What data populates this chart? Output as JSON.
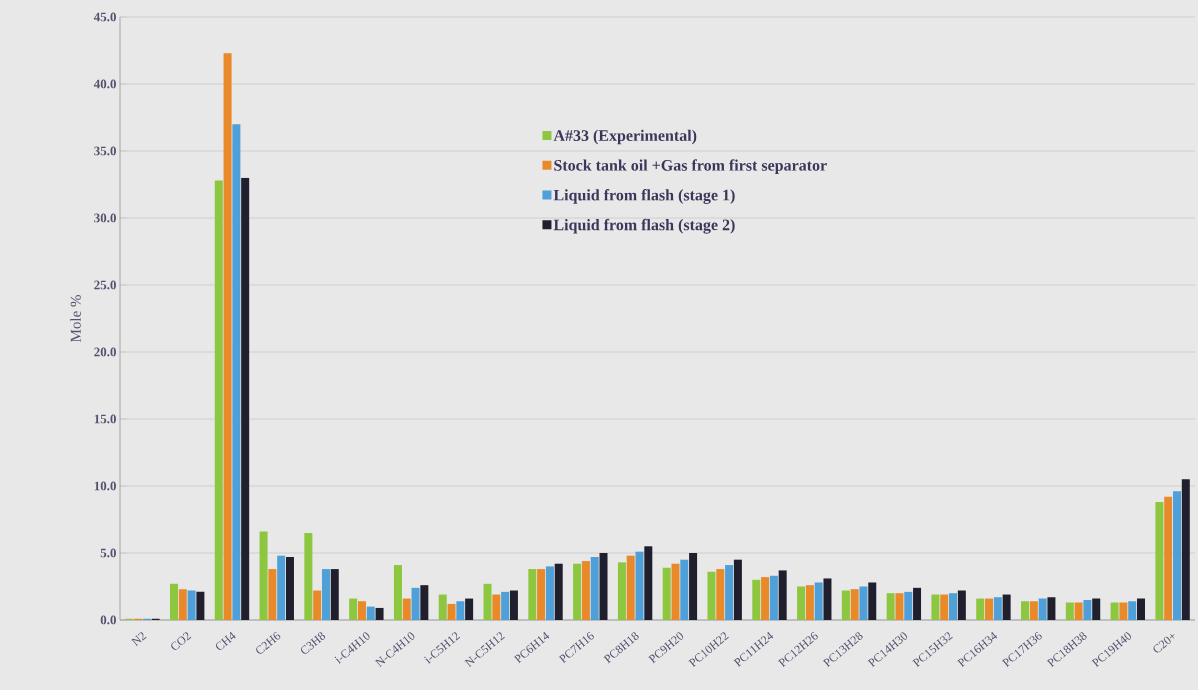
{
  "chart_data": {
    "type": "bar",
    "ylabel": "Mole %",
    "categories": [
      "N2",
      "CO2",
      "CH4",
      "C2H6",
      "C3H8",
      "i-C4H10",
      "N-C4H10",
      "i-C5H12",
      "N-C5H12",
      "PC6H14",
      "PC7H16",
      "PC8H18",
      "PC9H20",
      "PC10H22",
      "PC11H24",
      "PC12H26",
      "PC13H28",
      "PC14H30",
      "PC15H32",
      "PC16H34",
      "PC17H36",
      "PC18H38",
      "PC19H40",
      "C20+"
    ],
    "series": [
      {
        "name": "A#33 (Experimental)",
        "color": "#8dc63f",
        "values": [
          0.1,
          2.7,
          32.8,
          6.6,
          6.5,
          1.6,
          4.1,
          1.9,
          2.7,
          3.8,
          4.2,
          4.3,
          3.9,
          3.6,
          3.0,
          2.5,
          2.2,
          2.0,
          1.9,
          1.6,
          1.4,
          1.3,
          1.3,
          8.8
        ]
      },
      {
        "name": "Stock tank oil +Gas from first separator",
        "color": "#e8892a",
        "values": [
          0.1,
          2.3,
          42.3,
          3.8,
          2.2,
          1.4,
          1.6,
          1.2,
          1.9,
          3.8,
          4.4,
          4.8,
          4.2,
          3.8,
          3.2,
          2.6,
          2.3,
          2.0,
          1.9,
          1.6,
          1.4,
          1.3,
          1.3,
          9.2
        ]
      },
      {
        "name": "Liquid from flash (stage 1)",
        "color": "#4f9fd9",
        "values": [
          0.1,
          2.2,
          37.0,
          4.8,
          3.8,
          1.0,
          2.4,
          1.4,
          2.1,
          4.0,
          4.7,
          5.1,
          4.5,
          4.1,
          3.3,
          2.8,
          2.5,
          2.1,
          2.0,
          1.7,
          1.6,
          1.5,
          1.4,
          9.6
        ]
      },
      {
        "name": "Liquid from flash (stage 2)",
        "color": "#1f1f2e",
        "values": [
          0.1,
          2.1,
          33.0,
          4.7,
          3.8,
          0.9,
          2.6,
          1.6,
          2.2,
          4.2,
          5.0,
          5.5,
          5.0,
          4.5,
          3.7,
          3.1,
          2.8,
          2.4,
          2.2,
          1.9,
          1.7,
          1.6,
          1.6,
          10.5
        ]
      }
    ],
    "ylim": [
      0,
      45
    ],
    "yticks": [
      {
        "value": 0,
        "label": "0.0"
      },
      {
        "value": 5,
        "label": "5.0"
      },
      {
        "value": 10,
        "label": "10.0"
      },
      {
        "value": 15,
        "label": "15.0"
      },
      {
        "value": 20,
        "label": "20.0"
      },
      {
        "value": 25,
        "label": "25.0"
      },
      {
        "value": 30,
        "label": "30.0"
      },
      {
        "value": 35,
        "label": "35.0"
      },
      {
        "value": 40,
        "label": "40.0"
      },
      {
        "value": 45,
        "label": "45.0"
      }
    ],
    "grid": "y",
    "legend": "top right"
  }
}
